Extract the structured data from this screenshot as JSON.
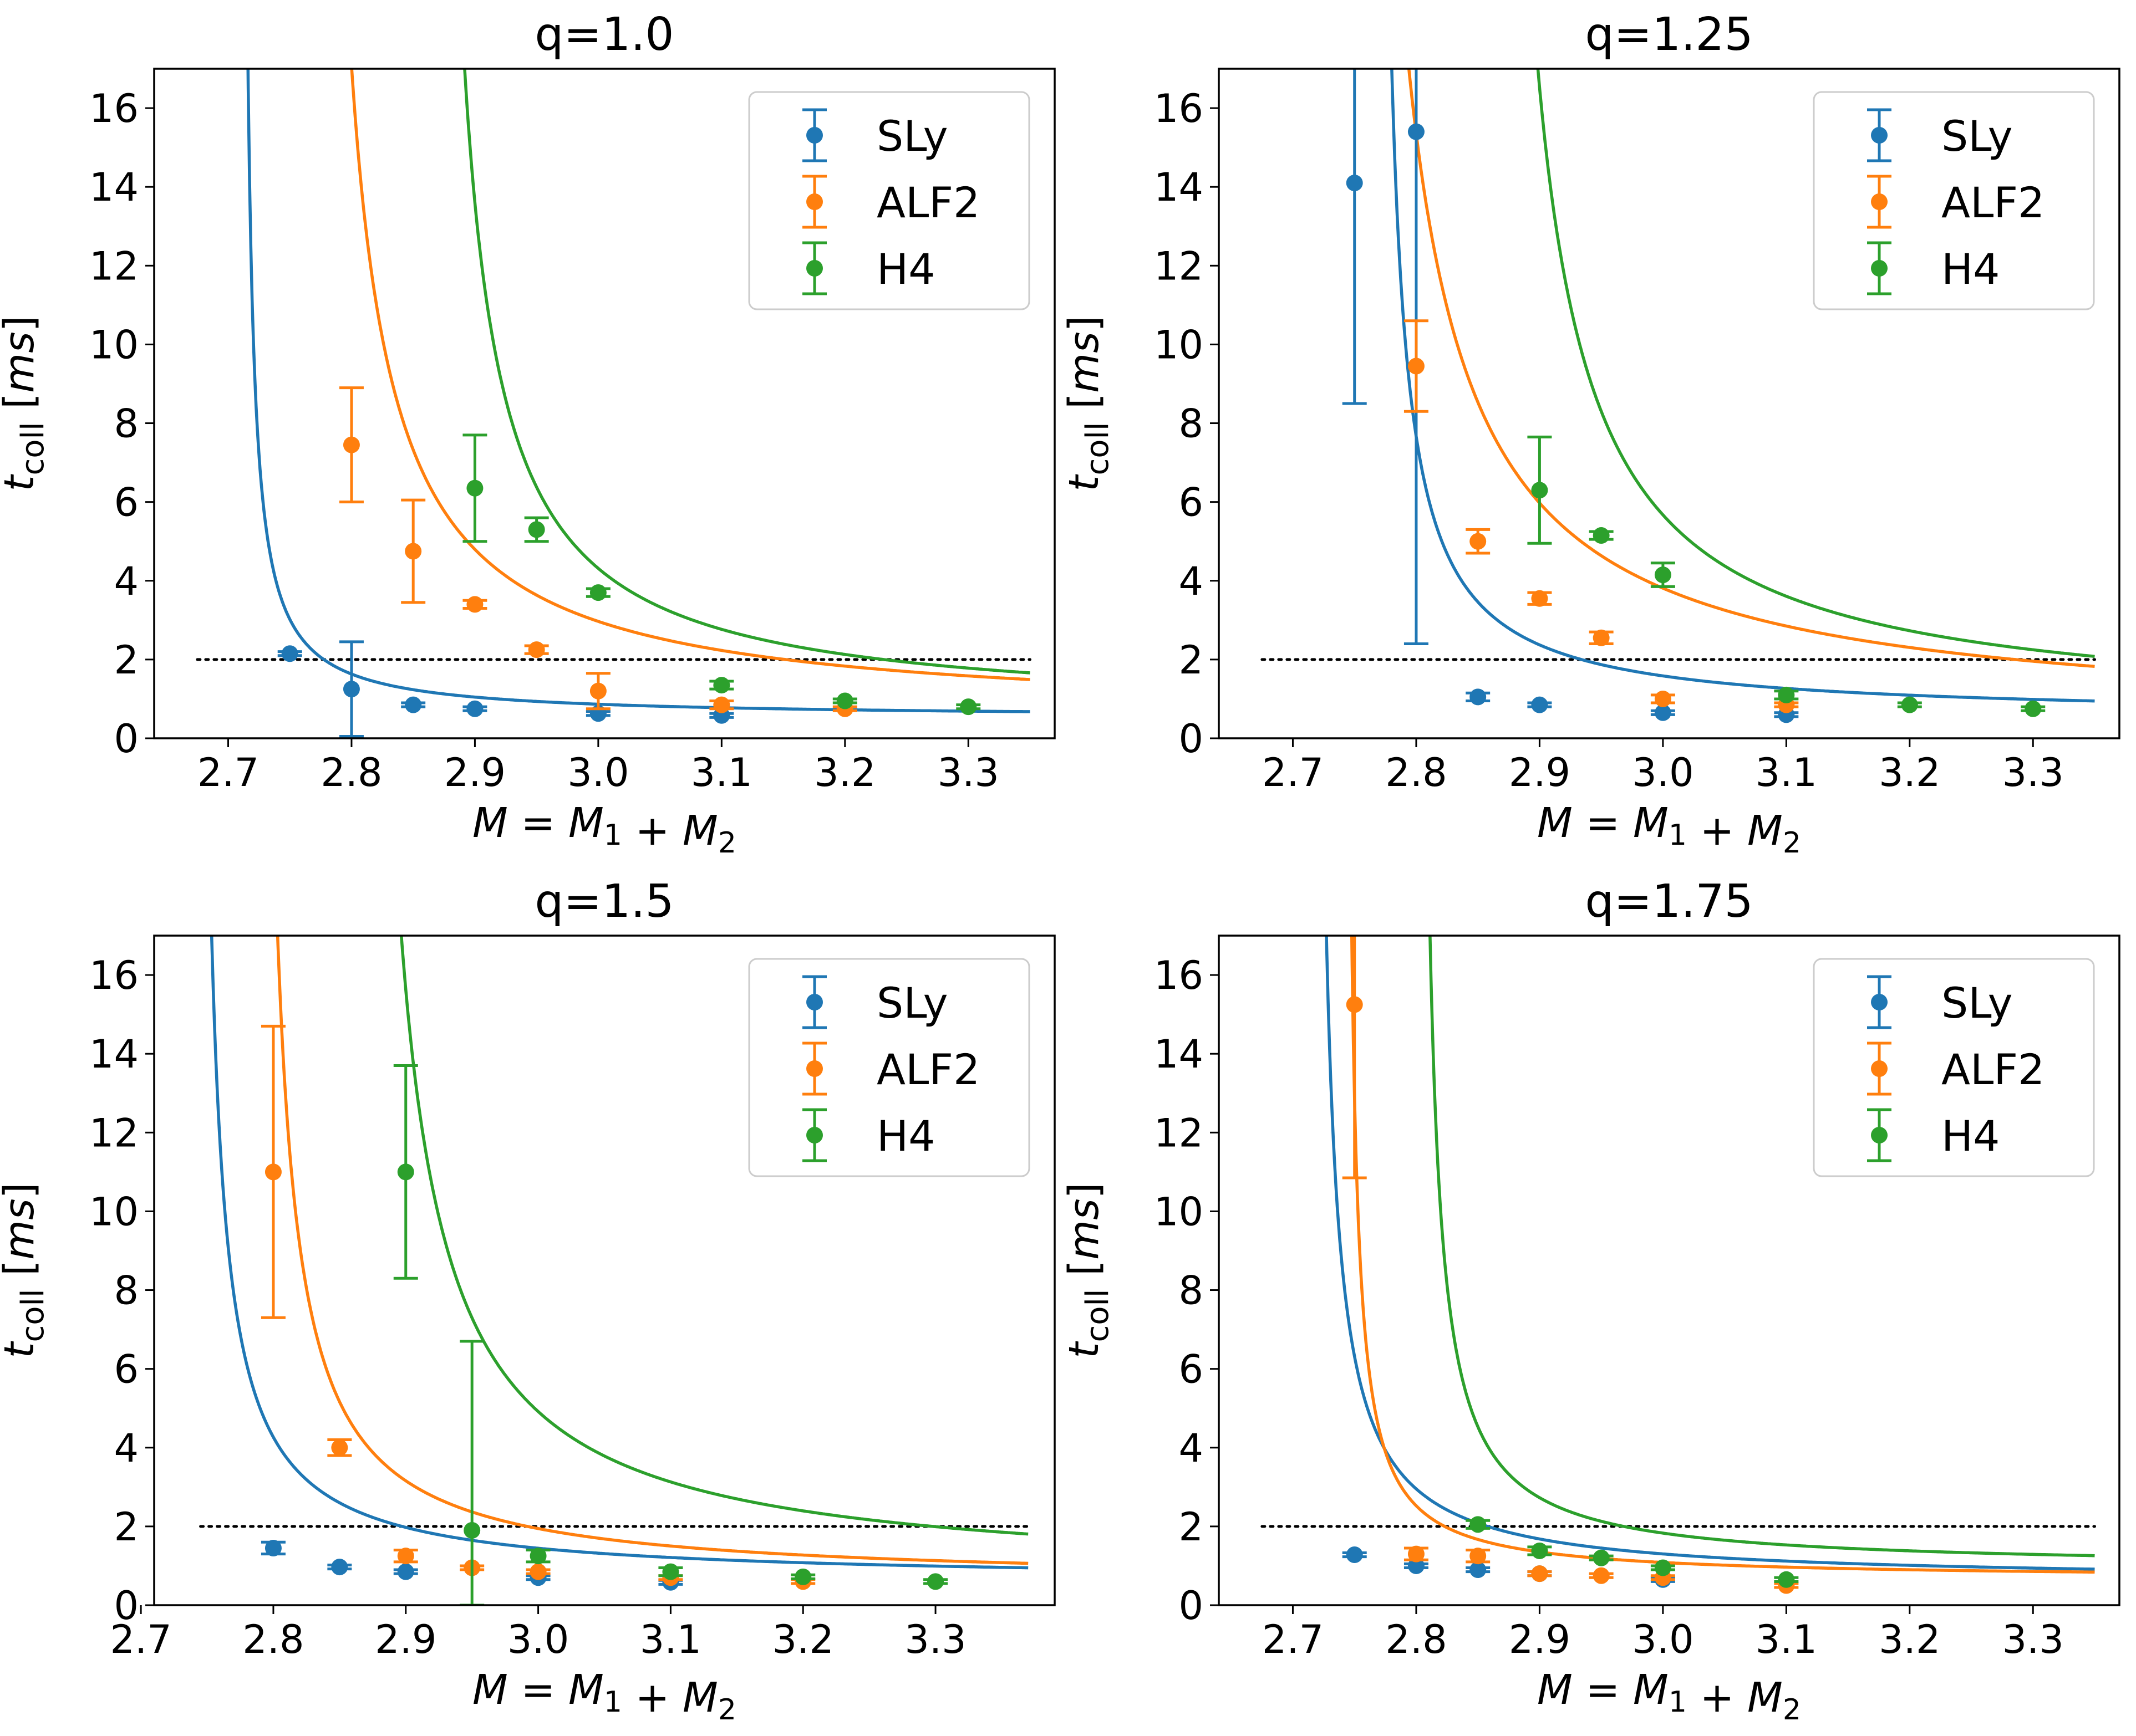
{
  "chart_data": [
    {
      "type": "scatter",
      "title": "q=1.0",
      "xlabel": "M = M_1 + M_2",
      "ylabel": "t_coll [ms]",
      "xlim": [
        2.64,
        3.37
      ],
      "ylim": [
        0,
        17
      ],
      "xticks": [
        "2.7",
        "2.8",
        "2.9",
        "3.0",
        "3.1",
        "3.2",
        "3.3"
      ],
      "yticks": [
        "0",
        "2",
        "4",
        "6",
        "8",
        "10",
        "12",
        "14",
        "16"
      ],
      "threshold": 2,
      "legend_position": "top-right",
      "series": [
        {
          "name": "SLy",
          "color": "#1f77b4",
          "points": [
            [
              2.75,
              2.15,
              0.05
            ],
            [
              2.8,
              1.25,
              1.2
            ],
            [
              2.85,
              0.85,
              0.05
            ],
            [
              2.9,
              0.75,
              0.05
            ],
            [
              3.0,
              0.63,
              0.05
            ],
            [
              3.1,
              0.58,
              0.05
            ]
          ],
          "fit": {
            "a": 0.52,
            "b": 0.1,
            "x0": 2.71
          }
        },
        {
          "name": "ALF2",
          "color": "#ff7f0e",
          "points": [
            [
              2.8,
              7.45,
              1.45
            ],
            [
              2.85,
              4.75,
              1.3
            ],
            [
              2.9,
              3.4,
              0.1
            ],
            [
              2.95,
              2.25,
              0.1
            ],
            [
              3.0,
              1.2,
              0.45
            ],
            [
              3.1,
              0.85,
              0.1
            ],
            [
              3.2,
              0.75,
              0.05
            ]
          ],
          "fit": {
            "a": 0.5,
            "b": 0.58,
            "x0": 2.765
          }
        },
        {
          "name": "H4",
          "color": "#2ca02c",
          "points": [
            [
              2.9,
              6.35,
              1.35
            ],
            [
              2.95,
              5.3,
              0.3
            ],
            [
              3.0,
              3.7,
              0.1
            ],
            [
              3.1,
              1.35,
              0.1
            ],
            [
              3.2,
              0.95,
              0.05
            ],
            [
              3.3,
              0.8,
              0.05
            ]
          ],
          "fit": {
            "a": 0.6,
            "b": 0.52,
            "x0": 2.86
          }
        }
      ]
    },
    {
      "type": "scatter",
      "title": "q=1.25",
      "xlabel": "M = M_1 + M_2",
      "ylabel": "t_coll [ms]",
      "xlim": [
        2.64,
        3.37
      ],
      "ylim": [
        0,
        17
      ],
      "xticks": [
        "2.7",
        "2.8",
        "2.9",
        "3.0",
        "3.1",
        "3.2",
        "3.3"
      ],
      "yticks": [
        "0",
        "2",
        "4",
        "6",
        "8",
        "10",
        "12",
        "14",
        "16"
      ],
      "threshold": 2,
      "legend_position": "top-right",
      "series": [
        {
          "name": "SLy",
          "color": "#1f77b4",
          "points": [
            [
              2.75,
              14.1,
              5.6
            ],
            [
              2.8,
              15.4,
              13.0
            ],
            [
              2.85,
              1.05,
              0.1
            ],
            [
              2.9,
              0.85,
              0.05
            ],
            [
              3.0,
              0.65,
              0.05
            ],
            [
              3.1,
              0.6,
              0.05
            ]
          ],
          "fit": {
            "a": 0.52,
            "b": 0.25,
            "x0": 2.765
          }
        },
        {
          "name": "ALF2",
          "color": "#ff7f0e",
          "points": [
            [
              2.8,
              9.45,
              1.15
            ],
            [
              2.85,
              5.0,
              0.3
            ],
            [
              2.9,
              3.55,
              0.15
            ],
            [
              2.95,
              2.55,
              0.15
            ],
            [
              3.0,
              1.0,
              0.1
            ],
            [
              3.1,
              0.85,
              0.05
            ]
          ],
          "fit": {
            "a": 0.35,
            "b": 0.9,
            "x0": 2.74
          }
        },
        {
          "name": "H4",
          "color": "#2ca02c",
          "points": [
            [
              2.9,
              6.3,
              1.35
            ],
            [
              2.95,
              5.15,
              0.1
            ],
            [
              3.0,
              4.15,
              0.3
            ],
            [
              3.1,
              1.1,
              0.1
            ],
            [
              3.2,
              0.85,
              0.05
            ],
            [
              3.3,
              0.75,
              0.05
            ]
          ],
          "fit": {
            "a": 0.57,
            "b": 0.75,
            "x0": 2.853
          }
        }
      ]
    },
    {
      "type": "scatter",
      "title": "q=1.5",
      "xlabel": "M = M_1 + M_2",
      "ylabel": "t_coll [ms]",
      "xlim": [
        2.71,
        3.39
      ],
      "ylim": [
        0,
        17
      ],
      "xticks": [
        "2.7",
        "2.8",
        "2.9",
        "3.0",
        "3.1",
        "3.2",
        "3.3"
      ],
      "yticks": [
        "0",
        "2",
        "4",
        "6",
        "8",
        "10",
        "12",
        "14",
        "16"
      ],
      "threshold": 2,
      "legend_position": "top-right",
      "series": [
        {
          "name": "SLy",
          "color": "#1f77b4",
          "points": [
            [
              2.8,
              1.45,
              0.15
            ],
            [
              2.85,
              0.97,
              0.05
            ],
            [
              2.9,
              0.85,
              0.05
            ],
            [
              3.0,
              0.7,
              0.05
            ],
            [
              3.1,
              0.58,
              0.05
            ]
          ],
          "fit": {
            "a": 0.6,
            "b": 0.22,
            "x0": 2.74
          }
        },
        {
          "name": "ALF2",
          "color": "#ff7f0e",
          "points": [
            [
              2.8,
              11.0,
              3.7
            ],
            [
              2.85,
              4.0,
              0.2
            ],
            [
              2.9,
              1.25,
              0.15
            ],
            [
              2.95,
              0.95,
              0.05
            ],
            [
              3.0,
              0.85,
              0.05
            ],
            [
              3.1,
              0.7,
              0.05
            ],
            [
              3.2,
              0.6,
              0.05
            ]
          ],
          "fit": {
            "a": 0.55,
            "b": 0.3,
            "x0": 2.785
          }
        },
        {
          "name": "H4",
          "color": "#2ca02c",
          "points": [
            [
              2.9,
              11.0,
              2.7
            ],
            [
              2.95,
              1.9,
              4.8
            ],
            [
              3.0,
              1.25,
              0.15
            ],
            [
              3.1,
              0.85,
              0.1
            ],
            [
              3.2,
              0.72,
              0.05
            ],
            [
              3.3,
              0.6,
              0.05
            ]
          ],
          "fit": {
            "a": 0.63,
            "b": 0.6,
            "x0": 2.86
          }
        }
      ]
    },
    {
      "type": "scatter",
      "title": "q=1.75",
      "xlabel": "M = M_1 + M_2",
      "ylabel": "t_coll [ms]",
      "xlim": [
        2.64,
        3.37
      ],
      "ylim": [
        0,
        17
      ],
      "xticks": [
        "2.7",
        "2.8",
        "2.9",
        "3.0",
        "3.1",
        "3.2",
        "3.3"
      ],
      "yticks": [
        "0",
        "2",
        "4",
        "6",
        "8",
        "10",
        "12",
        "14",
        "16"
      ],
      "threshold": 2,
      "legend_position": "top-right",
      "series": [
        {
          "name": "SLy",
          "color": "#1f77b4",
          "points": [
            [
              2.75,
              1.28,
              0.05
            ],
            [
              2.8,
              1.0,
              0.05
            ],
            [
              2.85,
              0.9,
              0.05
            ],
            [
              2.9,
              0.8,
              0.05
            ],
            [
              3.0,
              0.65,
              0.05
            ]
          ],
          "fit": {
            "a": 0.6,
            "b": 0.2,
            "x0": 2.715
          }
        },
        {
          "name": "ALF2",
          "color": "#ff7f0e",
          "points": [
            [
              2.75,
              15.25,
              4.4
            ],
            [
              2.8,
              1.3,
              0.15
            ],
            [
              2.85,
              1.25,
              0.15
            ],
            [
              2.9,
              0.8,
              0.05
            ],
            [
              2.95,
              0.75,
              0.05
            ],
            [
              3.0,
              0.7,
              0.05
            ],
            [
              3.1,
              0.5,
              0.05
            ]
          ],
          "fit": {
            "a": 0.66,
            "b": 0.11,
            "x0": 2.741
          }
        },
        {
          "name": "H4",
          "color": "#2ca02c",
          "points": [
            [
              2.85,
              2.05,
              0.1
            ],
            [
              2.9,
              1.38,
              0.1
            ],
            [
              2.95,
              1.2,
              0.05
            ],
            [
              3.0,
              0.95,
              0.05
            ],
            [
              3.1,
              0.65,
              0.05
            ]
          ],
          "fit": {
            "a": 0.93,
            "b": 0.18,
            "x0": 2.8
          }
        }
      ]
    }
  ]
}
